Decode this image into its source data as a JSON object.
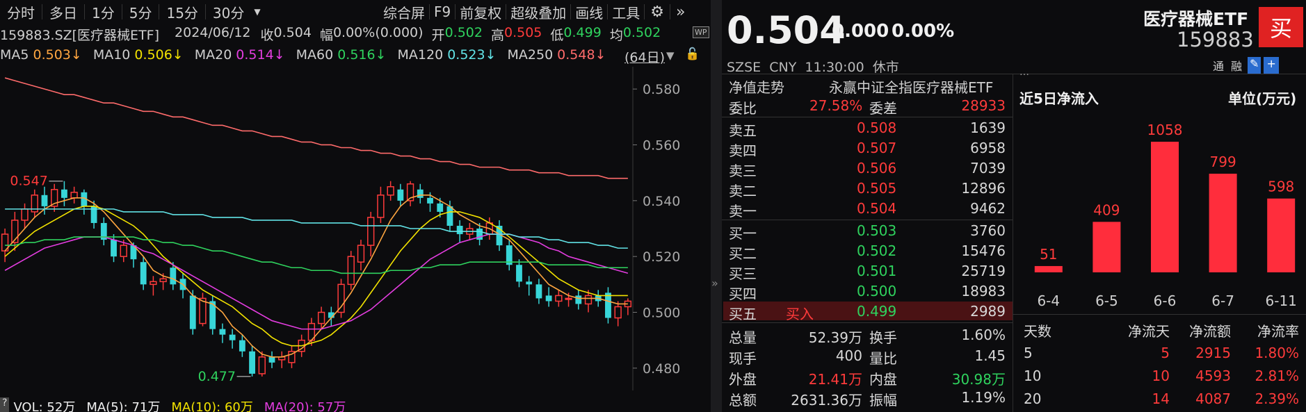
{
  "toolbar": {
    "periods": [
      "分时",
      "多日",
      "1分",
      "5分",
      "15分",
      "30分"
    ],
    "dropdown_icon": "chevron-down-icon",
    "tools": [
      "综合屏",
      "F9",
      "前复权",
      "超级叠加",
      "画线",
      "工具"
    ],
    "settings_icon": "gear-icon",
    "more_icon": "double-chevron-right-icon"
  },
  "info": {
    "code_name": "159883.SZ[医疗器械ETF]",
    "date": "2024/06/12",
    "close_label": "收",
    "close": "0.504",
    "change_label": "幅",
    "change": "0.00%(0.000)",
    "open_label": "开",
    "open": "0.502",
    "high_label": "高",
    "high": "0.505",
    "low_label": "低",
    "low": "0.499",
    "avg_label": "均",
    "avg": "0.502",
    "wp_badge": "WP"
  },
  "ma": {
    "items": [
      {
        "name": "MA5",
        "value": "0.503↓",
        "color": "#ffa640"
      },
      {
        "name": "MA10",
        "value": "0.506↓",
        "color": "#f2e200"
      },
      {
        "name": "MA20",
        "value": "0.514↓",
        "color": "#e43de0"
      },
      {
        "name": "MA60",
        "value": "0.516↓",
        "color": "#2fd35e"
      },
      {
        "name": "MA120",
        "value": "0.523↓",
        "color": "#62e3e6"
      },
      {
        "name": "MA250",
        "value": "0.548↓",
        "color": "#ff6b6b"
      }
    ],
    "days": "(64日)"
  },
  "chart_data": {
    "type": "candlestick",
    "ylim": [
      0.472,
      0.588
    ],
    "ticks": [
      "0.580",
      "0.560",
      "0.540",
      "0.520",
      "0.500",
      "0.480"
    ],
    "tick_values": [
      0.58,
      0.56,
      0.54,
      0.52,
      0.5,
      0.48
    ],
    "high_label": "0.547",
    "low_label": "0.477",
    "candles": [
      [
        0.522,
        0.528,
        0.518,
        0.53
      ],
      [
        0.525,
        0.533,
        0.522,
        0.536
      ],
      [
        0.533,
        0.537,
        0.53,
        0.539
      ],
      [
        0.536,
        0.542,
        0.534,
        0.544
      ],
      [
        0.542,
        0.538,
        0.535,
        0.545
      ],
      [
        0.538,
        0.544,
        0.536,
        0.546
      ],
      [
        0.544,
        0.541,
        0.538,
        0.547
      ],
      [
        0.541,
        0.543,
        0.539,
        0.545
      ],
      [
        0.543,
        0.538,
        0.535,
        0.544
      ],
      [
        0.538,
        0.532,
        0.53,
        0.54
      ],
      [
        0.532,
        0.526,
        0.524,
        0.534
      ],
      [
        0.526,
        0.52,
        0.518,
        0.528
      ],
      [
        0.52,
        0.524,
        0.518,
        0.526
      ],
      [
        0.524,
        0.519,
        0.516,
        0.525
      ],
      [
        0.518,
        0.51,
        0.508,
        0.52
      ],
      [
        0.51,
        0.511,
        0.506,
        0.513
      ],
      [
        0.511,
        0.512,
        0.508,
        0.514
      ],
      [
        0.516,
        0.51,
        0.508,
        0.518
      ],
      [
        0.512,
        0.508,
        0.505,
        0.514
      ],
      [
        0.506,
        0.494,
        0.492,
        0.508
      ],
      [
        0.496,
        0.505,
        0.495,
        0.507
      ],
      [
        0.504,
        0.494,
        0.492,
        0.506
      ],
      [
        0.494,
        0.492,
        0.489,
        0.496
      ],
      [
        0.492,
        0.49,
        0.487,
        0.494
      ],
      [
        0.49,
        0.486,
        0.484,
        0.492
      ],
      [
        0.486,
        0.478,
        0.477,
        0.488
      ],
      [
        0.478,
        0.484,
        0.477,
        0.486
      ],
      [
        0.484,
        0.482,
        0.48,
        0.486
      ],
      [
        0.483,
        0.484,
        0.48,
        0.486
      ],
      [
        0.482,
        0.486,
        0.48,
        0.488
      ],
      [
        0.486,
        0.49,
        0.484,
        0.492
      ],
      [
        0.49,
        0.496,
        0.488,
        0.498
      ],
      [
        0.496,
        0.5,
        0.494,
        0.502
      ],
      [
        0.5,
        0.498,
        0.495,
        0.502
      ],
      [
        0.5,
        0.51,
        0.498,
        0.512
      ],
      [
        0.51,
        0.52,
        0.508,
        0.522
      ],
      [
        0.518,
        0.524,
        0.515,
        0.526
      ],
      [
        0.524,
        0.534,
        0.52,
        0.536
      ],
      [
        0.534,
        0.542,
        0.532,
        0.545
      ],
      [
        0.542,
        0.545,
        0.54,
        0.547
      ],
      [
        0.544,
        0.54,
        0.538,
        0.546
      ],
      [
        0.54,
        0.546,
        0.538,
        0.547
      ],
      [
        0.544,
        0.541,
        0.539,
        0.546
      ],
      [
        0.541,
        0.539,
        0.536,
        0.543
      ],
      [
        0.539,
        0.536,
        0.534,
        0.541
      ],
      [
        0.538,
        0.531,
        0.529,
        0.54
      ],
      [
        0.531,
        0.528,
        0.525,
        0.533
      ],
      [
        0.528,
        0.53,
        0.526,
        0.532
      ],
      [
        0.53,
        0.526,
        0.524,
        0.532
      ],
      [
        0.528,
        0.532,
        0.526,
        0.534
      ],
      [
        0.531,
        0.524,
        0.522,
        0.533
      ],
      [
        0.524,
        0.517,
        0.515,
        0.526
      ],
      [
        0.517,
        0.511,
        0.509,
        0.519
      ],
      [
        0.511,
        0.51,
        0.506,
        0.513
      ],
      [
        0.51,
        0.505,
        0.503,
        0.512
      ],
      [
        0.506,
        0.504,
        0.502,
        0.509
      ],
      [
        0.504,
        0.506,
        0.502,
        0.508
      ],
      [
        0.505,
        0.505,
        0.502,
        0.507
      ],
      [
        0.506,
        0.503,
        0.501,
        0.508
      ],
      [
        0.503,
        0.506,
        0.5,
        0.508
      ],
      [
        0.506,
        0.504,
        0.502,
        0.508
      ],
      [
        0.507,
        0.498,
        0.496,
        0.509
      ],
      [
        0.498,
        0.502,
        0.495,
        0.504
      ],
      [
        0.502,
        0.504,
        0.499,
        0.505
      ]
    ],
    "ma_lines": [
      {
        "name": "MA5",
        "color": "#ffa640",
        "values": [
          0.522,
          0.526,
          0.53,
          0.534,
          0.537,
          0.539,
          0.54,
          0.541,
          0.541,
          0.539,
          0.536,
          0.532,
          0.528,
          0.524,
          0.52,
          0.515,
          0.513,
          0.512,
          0.51,
          0.506,
          0.504,
          0.503,
          0.5,
          0.495,
          0.492,
          0.488,
          0.485,
          0.484,
          0.484,
          0.485,
          0.487,
          0.49,
          0.494,
          0.498,
          0.502,
          0.507,
          0.513,
          0.519,
          0.526,
          0.533,
          0.538,
          0.541,
          0.542,
          0.542,
          0.54,
          0.538,
          0.535,
          0.533,
          0.531,
          0.53,
          0.528,
          0.526,
          0.522,
          0.518,
          0.514,
          0.51,
          0.508,
          0.506,
          0.505,
          0.505,
          0.505,
          0.504,
          0.503,
          0.503
        ]
      },
      {
        "name": "MA10",
        "color": "#f2e200",
        "values": [
          0.52,
          0.523,
          0.526,
          0.529,
          0.531,
          0.533,
          0.535,
          0.537,
          0.538,
          0.538,
          0.537,
          0.535,
          0.533,
          0.531,
          0.528,
          0.524,
          0.52,
          0.517,
          0.514,
          0.511,
          0.508,
          0.506,
          0.504,
          0.502,
          0.499,
          0.496,
          0.494,
          0.491,
          0.489,
          0.488,
          0.488,
          0.489,
          0.49,
          0.492,
          0.495,
          0.498,
          0.502,
          0.507,
          0.512,
          0.517,
          0.522,
          0.526,
          0.53,
          0.533,
          0.535,
          0.536,
          0.536,
          0.535,
          0.534,
          0.532,
          0.53,
          0.527,
          0.524,
          0.521,
          0.518,
          0.515,
          0.512,
          0.51,
          0.508,
          0.507,
          0.506,
          0.506,
          0.506,
          0.506
        ]
      },
      {
        "name": "MA20",
        "color": "#e43de0",
        "values": [
          0.515,
          0.517,
          0.519,
          0.521,
          0.523,
          0.524,
          0.525,
          0.526,
          0.527,
          0.527,
          0.527,
          0.526,
          0.525,
          0.524,
          0.522,
          0.521,
          0.519,
          0.517,
          0.515,
          0.513,
          0.511,
          0.509,
          0.507,
          0.505,
          0.503,
          0.501,
          0.499,
          0.497,
          0.496,
          0.495,
          0.494,
          0.494,
          0.494,
          0.495,
          0.496,
          0.497,
          0.499,
          0.501,
          0.504,
          0.507,
          0.51,
          0.513,
          0.516,
          0.519,
          0.521,
          0.523,
          0.525,
          0.526,
          0.527,
          0.528,
          0.528,
          0.528,
          0.527,
          0.526,
          0.525,
          0.523,
          0.522,
          0.52,
          0.519,
          0.518,
          0.517,
          0.516,
          0.515,
          0.514
        ]
      },
      {
        "name": "MA60",
        "color": "#2fd35e",
        "values": [
          0.524,
          0.524,
          0.525,
          0.525,
          0.526,
          0.526,
          0.526,
          0.527,
          0.527,
          0.527,
          0.527,
          0.527,
          0.527,
          0.527,
          0.526,
          0.526,
          0.525,
          0.525,
          0.524,
          0.524,
          0.523,
          0.522,
          0.522,
          0.521,
          0.52,
          0.519,
          0.518,
          0.518,
          0.517,
          0.516,
          0.516,
          0.515,
          0.515,
          0.515,
          0.514,
          0.514,
          0.514,
          0.514,
          0.514,
          0.515,
          0.515,
          0.515,
          0.516,
          0.516,
          0.517,
          0.517,
          0.517,
          0.518,
          0.518,
          0.518,
          0.518,
          0.518,
          0.518,
          0.518,
          0.518,
          0.517,
          0.517,
          0.517,
          0.517,
          0.517,
          0.516,
          0.516,
          0.516,
          0.516
        ]
      },
      {
        "name": "MA120",
        "color": "#62e3e6",
        "values": [
          0.537,
          0.537,
          0.537,
          0.537,
          0.537,
          0.537,
          0.537,
          0.537,
          0.537,
          0.537,
          0.537,
          0.537,
          0.536,
          0.536,
          0.536,
          0.536,
          0.536,
          0.535,
          0.535,
          0.535,
          0.535,
          0.534,
          0.534,
          0.534,
          0.534,
          0.533,
          0.533,
          0.533,
          0.533,
          0.533,
          0.532,
          0.532,
          0.532,
          0.532,
          0.532,
          0.532,
          0.531,
          0.531,
          0.531,
          0.531,
          0.531,
          0.53,
          0.53,
          0.53,
          0.53,
          0.529,
          0.529,
          0.529,
          0.529,
          0.528,
          0.528,
          0.528,
          0.527,
          0.527,
          0.527,
          0.526,
          0.526,
          0.525,
          0.525,
          0.525,
          0.524,
          0.524,
          0.523,
          0.523
        ]
      },
      {
        "name": "MA250",
        "color": "#ff6b6b",
        "values": [
          0.584,
          0.583,
          0.582,
          0.581,
          0.58,
          0.579,
          0.578,
          0.578,
          0.577,
          0.576,
          0.575,
          0.575,
          0.574,
          0.573,
          0.572,
          0.572,
          0.571,
          0.57,
          0.57,
          0.569,
          0.568,
          0.567,
          0.567,
          0.566,
          0.565,
          0.565,
          0.564,
          0.563,
          0.563,
          0.562,
          0.561,
          0.561,
          0.56,
          0.56,
          0.559,
          0.559,
          0.558,
          0.558,
          0.557,
          0.557,
          0.556,
          0.556,
          0.555,
          0.555,
          0.554,
          0.554,
          0.553,
          0.553,
          0.552,
          0.552,
          0.552,
          0.551,
          0.551,
          0.551,
          0.55,
          0.55,
          0.55,
          0.549,
          0.549,
          0.549,
          0.549,
          0.548,
          0.548,
          0.548
        ]
      }
    ]
  },
  "volume_bar": {
    "vol": "VOL: 52万",
    "ma5": "MA(5): 71万",
    "ma10": "MA(10): 60万",
    "ma20": "MA(20): 57万",
    "help_icon": "?"
  },
  "quote": {
    "price": "0.504",
    "change": "0.000",
    "change_pct": "0.00%",
    "name": "医疗器械ETF",
    "code": "159883",
    "buy_button": "买",
    "market_line": "SZSE  CNY  11:30:00  休市",
    "tags": [
      "通",
      "融"
    ],
    "edit_icon": "edit-icon",
    "add_icon": "add-icon",
    "nav_label": "净值走势",
    "fund_name": "永赢中证全指医疗器械ETF",
    "weibi_label": "委比",
    "weibi": "27.58%",
    "weicha_label": "委差",
    "weicha": "28933",
    "asks": [
      {
        "label": "卖五",
        "price": "0.508",
        "vol": "1639"
      },
      {
        "label": "卖四",
        "price": "0.507",
        "vol": "6958"
      },
      {
        "label": "卖三",
        "price": "0.506",
        "vol": "7039"
      },
      {
        "label": "卖二",
        "price": "0.505",
        "vol": "12896"
      },
      {
        "label": "卖一",
        "price": "0.504",
        "vol": "9462"
      }
    ],
    "bids": [
      {
        "label": "买一",
        "price": "0.503",
        "vol": "3760"
      },
      {
        "label": "买二",
        "price": "0.502",
        "vol": "15476"
      },
      {
        "label": "买三",
        "price": "0.501",
        "vol": "25719"
      },
      {
        "label": "买四",
        "price": "0.500",
        "vol": "18983"
      },
      {
        "label": "买五",
        "price": "0.499",
        "vol": "2989"
      }
    ],
    "buy_tag": "买入",
    "stats": [
      {
        "l1": "总量",
        "v1": "52.39万",
        "l2": "换手",
        "v2": "1.60%"
      },
      {
        "l1": "现手",
        "v1": "400",
        "l2": "量比",
        "v2": "1.45"
      },
      {
        "l1": "外盘",
        "v1": "21.41万",
        "l2": "内盘",
        "v2": "30.98万"
      },
      {
        "l1": "总额",
        "v1": "2631.36万",
        "l2": "振幅",
        "v2": "1.19%"
      }
    ]
  },
  "flow": {
    "cut_top_text": "…",
    "title": "近5日净流入",
    "unit": "单位(万元)",
    "bar_color": "#ff2d3c",
    "bars_chart": {
      "categories": [
        "6-4",
        "6-5",
        "6-6",
        "6-7",
        "6-11"
      ],
      "values": [
        51,
        409,
        1058,
        799,
        598
      ],
      "labels": [
        "51",
        "409",
        "1058",
        "799",
        "598"
      ]
    },
    "table_headers": [
      "天数",
      "净流天",
      "净流额",
      "净流率"
    ],
    "rows": [
      [
        "5",
        "5",
        "2915",
        "1.80%"
      ],
      [
        "10",
        "10",
        "4593",
        "2.81%"
      ],
      [
        "20",
        "14",
        "4087",
        "2.39%"
      ]
    ]
  }
}
